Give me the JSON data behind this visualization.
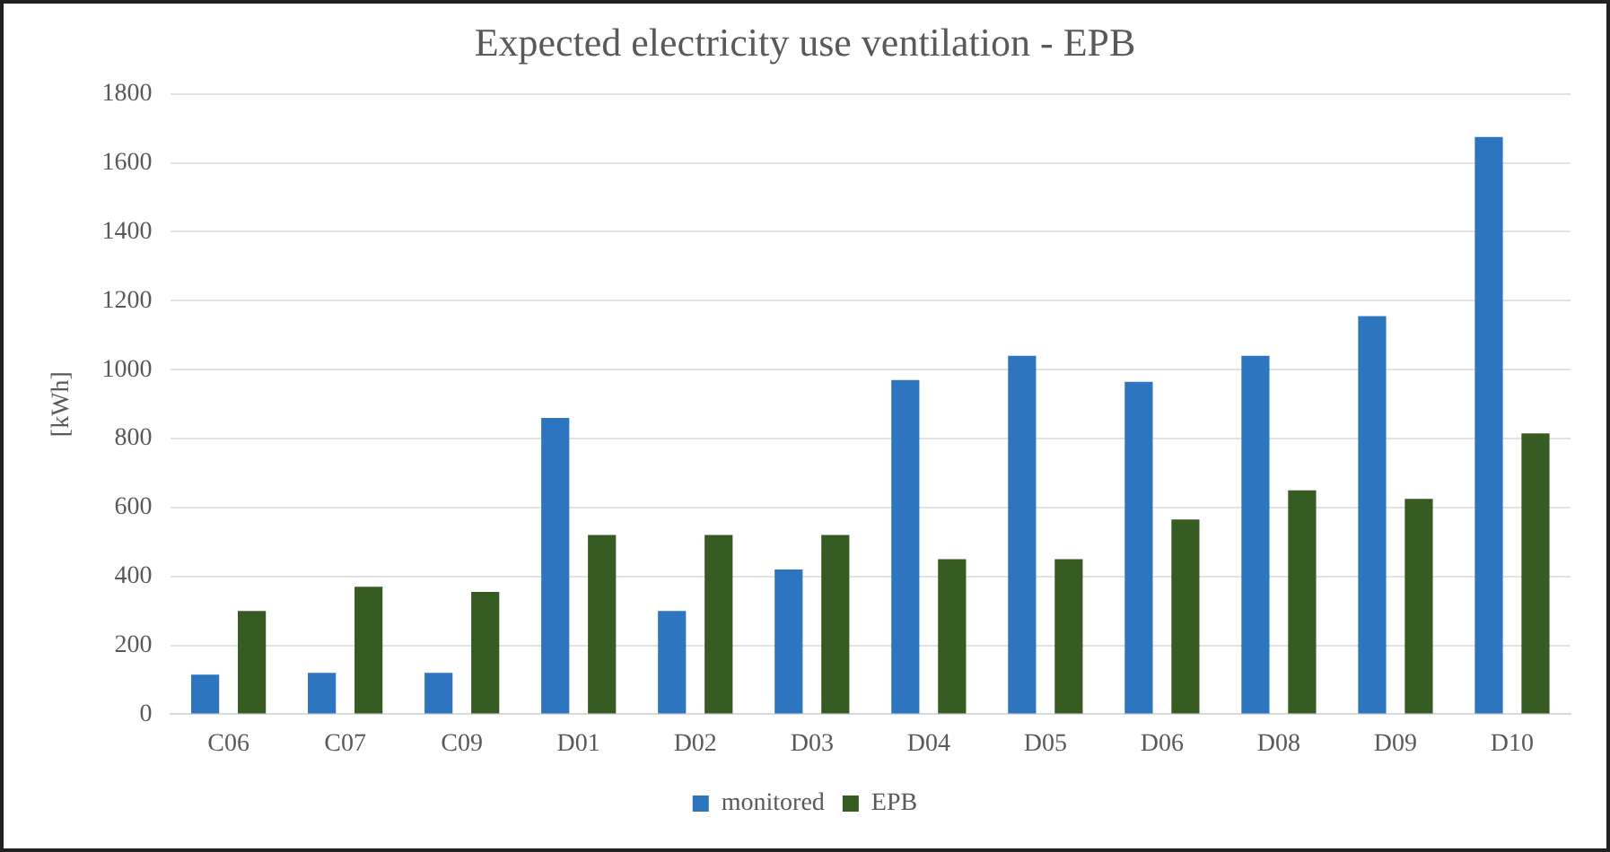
{
  "chart_data": {
    "type": "bar",
    "title": "Expected electricity use ventilation - EPB",
    "ylabel": "[kWh]",
    "categories": [
      "C06",
      "C07",
      "C09",
      "D01",
      "D02",
      "D03",
      "D04",
      "D05",
      "D06",
      "D08",
      "D09",
      "D10"
    ],
    "series": [
      {
        "name": "monitored",
        "color": "#2e75c0",
        "values": [
          115,
          120,
          120,
          860,
          300,
          420,
          970,
          1040,
          965,
          1040,
          1155,
          1675
        ]
      },
      {
        "name": "EPB",
        "color": "#375c23",
        "values": [
          300,
          370,
          355,
          520,
          520,
          520,
          450,
          450,
          565,
          650,
          625,
          815
        ]
      }
    ],
    "ylim": [
      0,
      1800
    ],
    "yticks": [
      0,
      200,
      400,
      600,
      800,
      1000,
      1200,
      1400,
      1600,
      1800
    ],
    "grid": "y",
    "legend": "bottom"
  }
}
